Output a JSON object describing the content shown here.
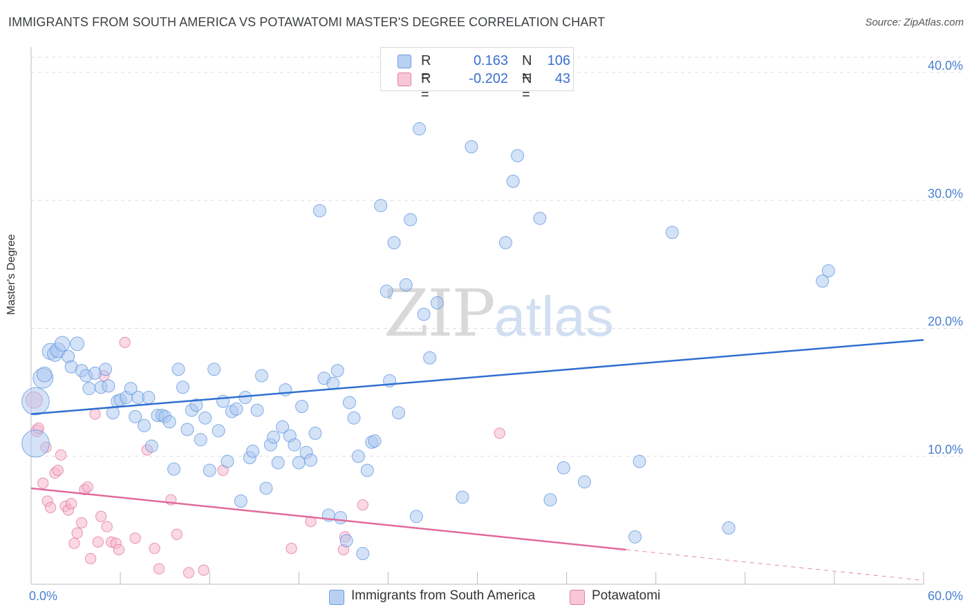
{
  "title": "IMMIGRANTS FROM SOUTH AMERICA VS POTAWATOMI MASTER'S DEGREE CORRELATION CHART",
  "source": "Source: ZipAtlas.com",
  "watermark": {
    "zip": "ZIP",
    "atlas": "atlas"
  },
  "colors": {
    "blue": "#5b93e0",
    "blue_fill": "#a9c6ef",
    "pink": "#e06a9a",
    "pink_fill": "#f5b8cd",
    "grid": "#dddddd"
  },
  "legend": {
    "rows": [
      {
        "r_label": "R =",
        "r_value": "0.163",
        "n_label": "N =",
        "n_value": "106"
      },
      {
        "r_label": "R =",
        "r_value": "-0.202",
        "n_label": "N =",
        "n_value": "43"
      }
    ]
  },
  "chart_data": {
    "type": "scatter",
    "title": "IMMIGRANTS FROM SOUTH AMERICA VS POTAWATOMI MASTER'S DEGREE CORRELATION CHART",
    "xlabel": "",
    "ylabel": "Master's Degree",
    "xlim": [
      0,
      60
    ],
    "ylim": [
      0,
      42
    ],
    "x_ticks": [
      "0.0%",
      "60.0%"
    ],
    "y_ticks": [
      {
        "value": 10,
        "label": "10.0%"
      },
      {
        "value": 20,
        "label": "20.0%"
      },
      {
        "value": 30,
        "label": "30.0%"
      },
      {
        "value": 40,
        "label": "40.0%"
      }
    ],
    "legend_position": "bottom",
    "series": [
      {
        "name": "Immigrants from South America",
        "color": "#5b93e0",
        "trend": {
          "x": [
            0,
            60
          ],
          "y": [
            13.3,
            19.1
          ],
          "dashed_from": null
        },
        "points": [
          [
            0.3,
            11.0,
            2.2
          ],
          [
            0.3,
            14.3,
            2.2
          ],
          [
            0.8,
            16.1,
            1.6
          ],
          [
            0.9,
            16.4,
            1.2
          ],
          [
            1.3,
            18.2,
            1.3
          ],
          [
            1.6,
            18.0,
            1.2
          ],
          [
            1.8,
            18.3,
            1.2
          ],
          [
            2.1,
            18.8,
            1.2
          ],
          [
            2.5,
            17.8,
            1.0
          ],
          [
            2.7,
            17.0,
            1.0
          ],
          [
            3.1,
            18.8,
            1.1
          ],
          [
            3.4,
            16.7,
            1.0
          ],
          [
            3.7,
            16.3,
            1.0
          ],
          [
            3.9,
            15.3,
            1.0
          ],
          [
            4.3,
            16.5,
            1.0
          ],
          [
            4.7,
            15.4,
            1.0
          ],
          [
            5.0,
            16.8,
            1.0
          ],
          [
            5.2,
            15.5,
            1.0
          ],
          [
            5.5,
            13.4,
            1.0
          ],
          [
            5.8,
            14.3,
            1.0
          ],
          [
            6.0,
            14.4,
            1.0
          ],
          [
            6.4,
            14.6,
            1.0
          ],
          [
            6.7,
            15.3,
            1.0
          ],
          [
            7.0,
            13.1,
            1.0
          ],
          [
            7.2,
            14.6,
            1.0
          ],
          [
            7.6,
            12.4,
            1.0
          ],
          [
            7.9,
            14.6,
            1.0
          ],
          [
            8.1,
            10.8,
            1.0
          ],
          [
            8.5,
            13.2,
            1.0
          ],
          [
            8.8,
            13.2,
            1.0
          ],
          [
            9.0,
            13.1,
            1.0
          ],
          [
            9.3,
            12.7,
            1.0
          ],
          [
            9.6,
            9.0,
            1.0
          ],
          [
            9.9,
            16.8,
            1.0
          ],
          [
            10.2,
            15.4,
            1.0
          ],
          [
            10.5,
            12.1,
            1.0
          ],
          [
            10.8,
            13.6,
            1.0
          ],
          [
            11.1,
            14.0,
            1.0
          ],
          [
            11.4,
            11.3,
            1.0
          ],
          [
            11.7,
            13.0,
            1.0
          ],
          [
            12.0,
            8.9,
            1.0
          ],
          [
            12.3,
            16.8,
            1.0
          ],
          [
            12.6,
            12.0,
            1.0
          ],
          [
            12.9,
            14.3,
            1.0
          ],
          [
            13.2,
            9.6,
            1.0
          ],
          [
            13.5,
            13.5,
            1.0
          ],
          [
            13.8,
            13.7,
            1.0
          ],
          [
            14.1,
            6.5,
            1.0
          ],
          [
            14.4,
            14.6,
            1.0
          ],
          [
            14.7,
            9.9,
            1.0
          ],
          [
            14.9,
            10.4,
            1.0
          ],
          [
            15.2,
            13.6,
            1.0
          ],
          [
            15.5,
            16.3,
            1.0
          ],
          [
            15.8,
            7.5,
            1.0
          ],
          [
            16.1,
            10.9,
            1.0
          ],
          [
            16.3,
            11.5,
            1.0
          ],
          [
            16.6,
            9.5,
            1.0
          ],
          [
            16.9,
            12.3,
            1.0
          ],
          [
            17.1,
            15.2,
            1.0
          ],
          [
            17.4,
            11.6,
            1.0
          ],
          [
            17.7,
            10.9,
            1.0
          ],
          [
            18.0,
            9.5,
            1.0
          ],
          [
            18.2,
            13.9,
            1.0
          ],
          [
            18.5,
            10.3,
            1.0
          ],
          [
            18.8,
            9.7,
            1.0
          ],
          [
            19.1,
            11.8,
            1.0
          ],
          [
            19.4,
            29.2,
            1.0
          ],
          [
            19.7,
            16.1,
            1.0
          ],
          [
            20.0,
            5.4,
            1.0
          ],
          [
            20.3,
            15.7,
            1.0
          ],
          [
            20.6,
            16.7,
            1.0
          ],
          [
            20.8,
            5.2,
            1.0
          ],
          [
            21.2,
            3.4,
            1.0
          ],
          [
            21.4,
            14.2,
            1.0
          ],
          [
            21.7,
            13.0,
            1.0
          ],
          [
            22.0,
            10.0,
            1.0
          ],
          [
            22.3,
            2.4,
            1.0
          ],
          [
            22.6,
            8.9,
            1.0
          ],
          [
            22.9,
            11.1,
            1.0
          ],
          [
            23.1,
            11.2,
            1.0
          ],
          [
            23.5,
            29.6,
            1.0
          ],
          [
            23.9,
            22.9,
            1.0
          ],
          [
            24.1,
            15.9,
            1.0
          ],
          [
            24.4,
            26.7,
            1.0
          ],
          [
            24.7,
            13.4,
            1.0
          ],
          [
            25.2,
            23.4,
            1.0
          ],
          [
            25.5,
            28.5,
            1.0
          ],
          [
            25.9,
            5.3,
            1.0
          ],
          [
            26.1,
            35.6,
            1.0
          ],
          [
            26.4,
            21.1,
            1.0
          ],
          [
            26.8,
            17.7,
            1.0
          ],
          [
            27.3,
            22.0,
            1.0
          ],
          [
            29.0,
            6.8,
            1.0
          ],
          [
            29.6,
            34.2,
            1.0
          ],
          [
            31.9,
            26.7,
            1.0
          ],
          [
            32.4,
            31.5,
            1.0
          ],
          [
            32.7,
            33.5,
            1.0
          ],
          [
            34.2,
            28.6,
            1.0
          ],
          [
            34.9,
            6.6,
            1.0
          ],
          [
            35.8,
            9.1,
            1.0
          ],
          [
            37.2,
            8.0,
            1.0
          ],
          [
            40.6,
            3.7,
            1.0
          ],
          [
            40.9,
            9.6,
            1.0
          ],
          [
            43.1,
            27.5,
            1.0
          ],
          [
            46.9,
            4.4,
            1.0
          ],
          [
            53.2,
            23.7,
            1.0
          ],
          [
            53.6,
            24.5,
            1.0
          ]
        ]
      },
      {
        "name": "Potawatomi",
        "color": "#e06a9a",
        "trend": {
          "x": [
            0,
            60
          ],
          "y": [
            7.5,
            0.3
          ],
          "dashed_from": 40
        }
      }
    ]
  }
}
